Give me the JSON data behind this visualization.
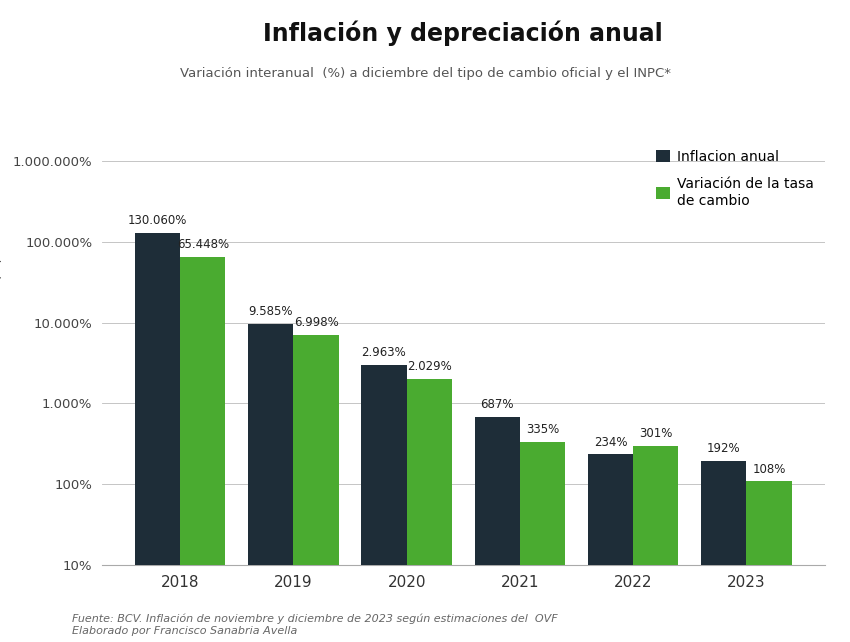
{
  "title": "Inflación y depreciación anual",
  "subtitle": "Variación interanual  (%) a diciembre del tipo de cambio oficial y el INPC*",
  "ylabel": "Variación anual (%)",
  "years": [
    "2018",
    "2019",
    "2020",
    "2021",
    "2022",
    "2023"
  ],
  "inflation": [
    130060,
    9585,
    2963,
    687,
    234,
    192
  ],
  "exchange": [
    65448,
    6998,
    2029,
    335,
    301,
    108
  ],
  "inflation_labels": [
    "130.060%",
    "9.585%",
    "2.963%",
    "687%",
    "234%",
    "192%"
  ],
  "exchange_labels": [
    "65.448%",
    "6.998%",
    "2.029%",
    "335%",
    "301%",
    "108%"
  ],
  "color_inflation": "#1e2d38",
  "color_exchange": "#4aab30",
  "legend_inflation": "Inflacion anual",
  "legend_exchange": "Variación de la tasa\nde cambio",
  "footnote1": "Fuente: BCV. Inflación de noviembre y diciembre de 2023 según estimaciones del  OVF",
  "footnote2": "Elaborado por Francisco Sanabria Avella",
  "ymin": 10,
  "ymax": 10000000,
  "yticks": [
    10,
    100,
    1000,
    10000,
    100000,
    1000000
  ],
  "ytick_labels": [
    "10%",
    "100%",
    "1.000%",
    "10.000%",
    "100.000%",
    "1.000.000%"
  ],
  "background_color": "#ffffff"
}
